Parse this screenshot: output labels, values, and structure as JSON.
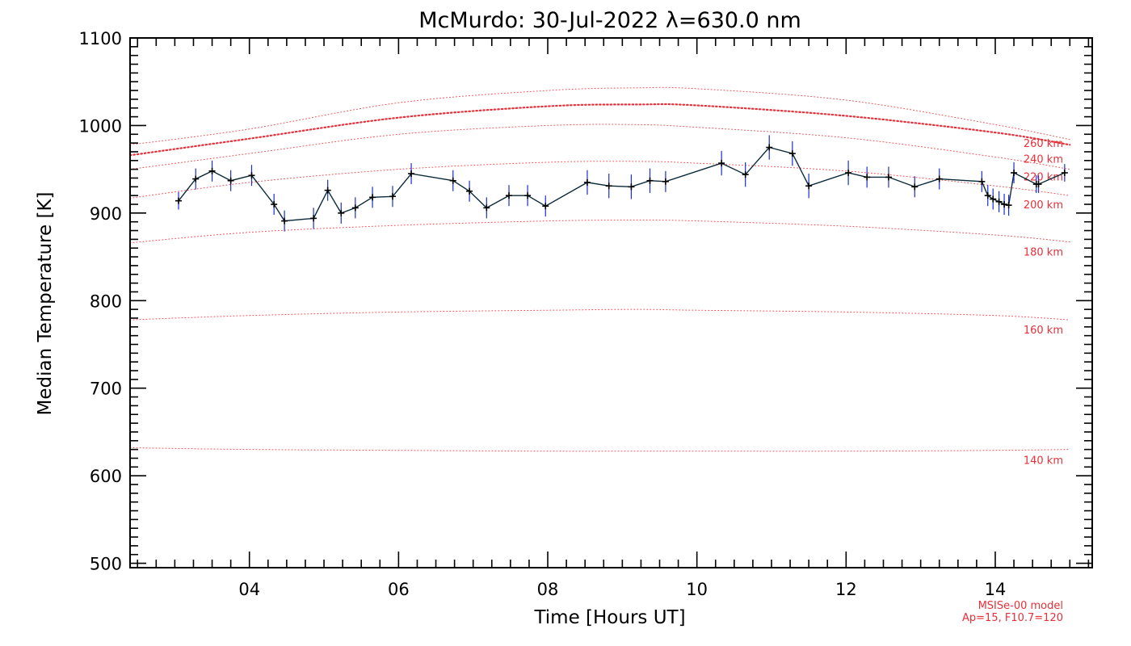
{
  "chart_data": {
    "type": "line",
    "title": "McMurdo: 30-Jul-2022 λ=630.0 nm",
    "xlabel": "Time [Hours UT]",
    "ylabel": "Median Temperature [K]",
    "xlim": [
      2.4,
      15.3
    ],
    "ylim": [
      495,
      1100
    ],
    "x_ticks": [
      4,
      6,
      8,
      10,
      12,
      14
    ],
    "x_tick_labels": [
      "04",
      "06",
      "08",
      "10",
      "12",
      "14"
    ],
    "y_ticks": [
      500,
      600,
      700,
      800,
      900,
      1000,
      1100
    ],
    "y_tick_labels": [
      "500",
      "600",
      "700",
      "800",
      "900",
      "1000",
      "1100"
    ],
    "grid": false,
    "series": [
      {
        "color": "#0a2a3a",
        "error_color": "#1a2fd0",
        "x": [
          3.05,
          3.28,
          3.5,
          3.75,
          4.03,
          4.33,
          4.47,
          4.86,
          5.05,
          5.23,
          5.42,
          5.65,
          5.92,
          6.17,
          6.73,
          6.95,
          7.18,
          7.48,
          7.73,
          7.97,
          8.53,
          8.82,
          9.12,
          9.37,
          9.58,
          10.33,
          10.65,
          10.97,
          11.28,
          11.5,
          12.03,
          12.28,
          12.57,
          12.92,
          13.25,
          13.82,
          13.9,
          13.97,
          14.05,
          14.12,
          14.18,
          14.25,
          14.55,
          14.58,
          14.93
        ],
        "values": [
          914,
          939,
          948,
          937,
          943,
          910,
          891,
          894,
          926,
          900,
          906,
          918,
          919,
          945,
          937,
          925,
          906,
          920,
          920,
          908,
          935,
          931,
          930,
          937,
          936,
          957,
          944,
          975,
          968,
          931,
          946,
          941,
          941,
          930,
          939,
          936,
          920,
          916,
          913,
          910,
          909,
          946,
          933,
          933,
          946
        ],
        "errors": [
          10,
          12,
          12,
          12,
          12,
          12,
          12,
          12,
          12,
          12,
          12,
          12,
          12,
          12,
          12,
          12,
          12,
          12,
          12,
          12,
          14,
          14,
          14,
          14,
          12,
          14,
          14,
          14,
          14,
          14,
          14,
          12,
          12,
          12,
          12,
          12,
          12,
          12,
          12,
          12,
          12,
          12,
          10,
          10,
          10
        ]
      }
    ],
    "model_curves": [
      {
        "label": "260 km",
        "x": [
          2.4,
          4,
          6,
          8,
          9.2,
          10,
          12,
          14,
          15.0
        ],
        "values": [
          966,
          985,
          1009,
          1022,
          1024,
          1023,
          1011,
          992,
          978
        ],
        "emphasized": true
      },
      {
        "label": "240 km",
        "x": [
          2.4,
          4,
          6,
          8,
          9.2,
          10,
          12,
          14,
          15.0
        ],
        "values": [
          978,
          996,
          1026,
          1040,
          1043,
          1042,
          1029,
          1001,
          984
        ],
        "emphasized": false
      },
      {
        "label": "220 km",
        "x": [
          2.4,
          4,
          6,
          8,
          9.2,
          10,
          12,
          14,
          15.0
        ],
        "values": [
          950,
          968,
          990,
          1000,
          1001,
          998,
          986,
          964,
          950
        ],
        "emphasized": false
      },
      {
        "label": "200 km",
        "x": [
          2.4,
          4,
          6,
          8,
          9.2,
          10,
          12,
          14,
          15.0
        ],
        "values": [
          917,
          935,
          950,
          958,
          959,
          957,
          948,
          931,
          920
        ],
        "emphasized": false
      },
      {
        "label": "180 km",
        "x": [
          2.4,
          4,
          6,
          8,
          9.2,
          10,
          12,
          14,
          15.0
        ],
        "values": [
          866,
          878,
          886,
          891,
          892,
          891,
          885,
          875,
          867
        ],
        "emphasized": false
      },
      {
        "label": "160 km",
        "x": [
          2.4,
          4,
          6,
          8,
          9.2,
          10,
          12,
          14,
          15.0
        ],
        "values": [
          778,
          783,
          787,
          789,
          790,
          789,
          787,
          783,
          778
        ],
        "emphasized": false
      },
      {
        "label": "140 km",
        "x": [
          2.4,
          4,
          6,
          8,
          9.2,
          10,
          12,
          14,
          15.0
        ],
        "values": [
          632,
          630,
          629,
          628,
          628,
          628,
          628,
          629,
          630
        ],
        "emphasized": false
      }
    ],
    "model_label_y": [
      980,
      962,
      942,
      910,
      856,
      767,
      618
    ],
    "model_color": "#e8303a",
    "model_note": [
      "MSISe-00 model",
      "Ap=15, F10.7=120"
    ]
  }
}
